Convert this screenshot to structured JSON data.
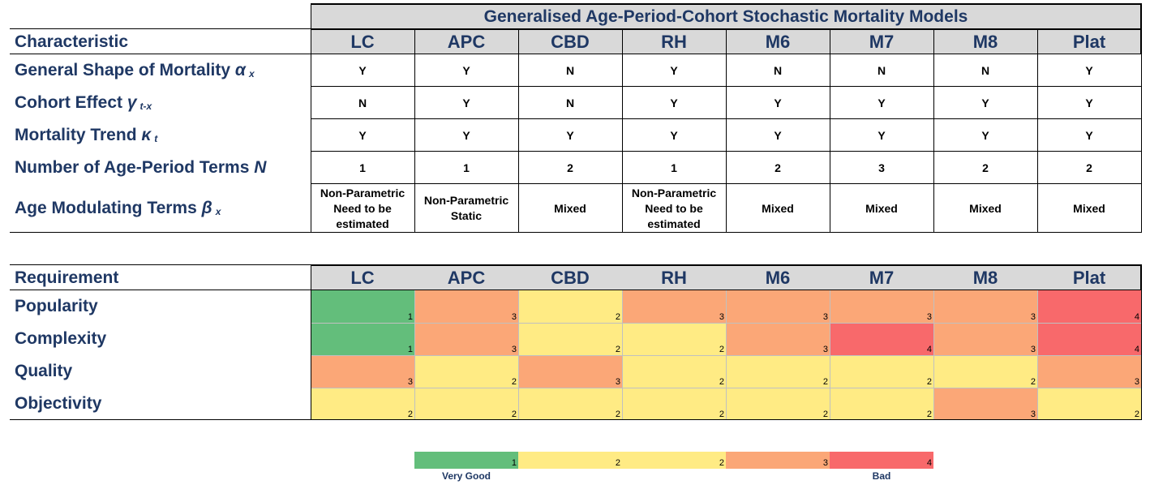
{
  "title": "Generalised Age-Period-Cohort Stochastic Mortality Models",
  "models": [
    "LC",
    "APC",
    "CBD",
    "RH",
    "M6",
    "M7",
    "M8",
    "Plat"
  ],
  "table1": {
    "header": "Characteristic",
    "rows": [
      {
        "label": "General Shape of Mortality",
        "symbol": "α",
        "sub": "x",
        "values": [
          "Y",
          "Y",
          "N",
          "Y",
          "N",
          "N",
          "N",
          "Y"
        ]
      },
      {
        "label": "Cohort Effect",
        "symbol": "γ",
        "sub": "t-x",
        "values": [
          "N",
          "Y",
          "N",
          "Y",
          "Y",
          "Y",
          "Y",
          "Y"
        ]
      },
      {
        "label": "Mortality Trend",
        "symbol": "κ",
        "sub": "t",
        "values": [
          "Y",
          "Y",
          "Y",
          "Y",
          "Y",
          "Y",
          "Y",
          "Y"
        ]
      },
      {
        "label": "Number of Age-Period Terms",
        "symbol": "N",
        "sub": "",
        "values": [
          "1",
          "1",
          "2",
          "1",
          "2",
          "3",
          "2",
          "2"
        ]
      },
      {
        "label": "Age Modulating Terms",
        "symbol": "β",
        "sub": "x",
        "values": [
          "Non-Parametric\nNeed to be\nestimated",
          "Non-Parametric\nStatic",
          "Mixed",
          "Non-Parametric\nNeed to be\nestimated",
          "Mixed",
          "Mixed",
          "Mixed",
          "Mixed"
        ]
      }
    ]
  },
  "table2": {
    "header": "Requirement",
    "rows": [
      {
        "label": "Popularity",
        "values": [
          1,
          3,
          2,
          3,
          3,
          3,
          3,
          4
        ]
      },
      {
        "label": "Complexity",
        "values": [
          1,
          3,
          2,
          2,
          3,
          4,
          3,
          4
        ]
      },
      {
        "label": "Quality",
        "values": [
          3,
          2,
          3,
          2,
          2,
          2,
          2,
          3
        ]
      },
      {
        "label": "Objectivity",
        "values": [
          2,
          2,
          2,
          2,
          2,
          2,
          3,
          2
        ]
      }
    ]
  },
  "legend": {
    "cells": [
      1,
      2,
      2,
      3,
      4
    ],
    "label_good": "Very Good",
    "label_bad": "Bad"
  },
  "colors": {
    "1": "#63be7b",
    "2": "#ffeb84",
    "3": "#fba777",
    "4": "#f8696b",
    "header_bg": "#d9d9d9",
    "navy": "#1f3864"
  }
}
